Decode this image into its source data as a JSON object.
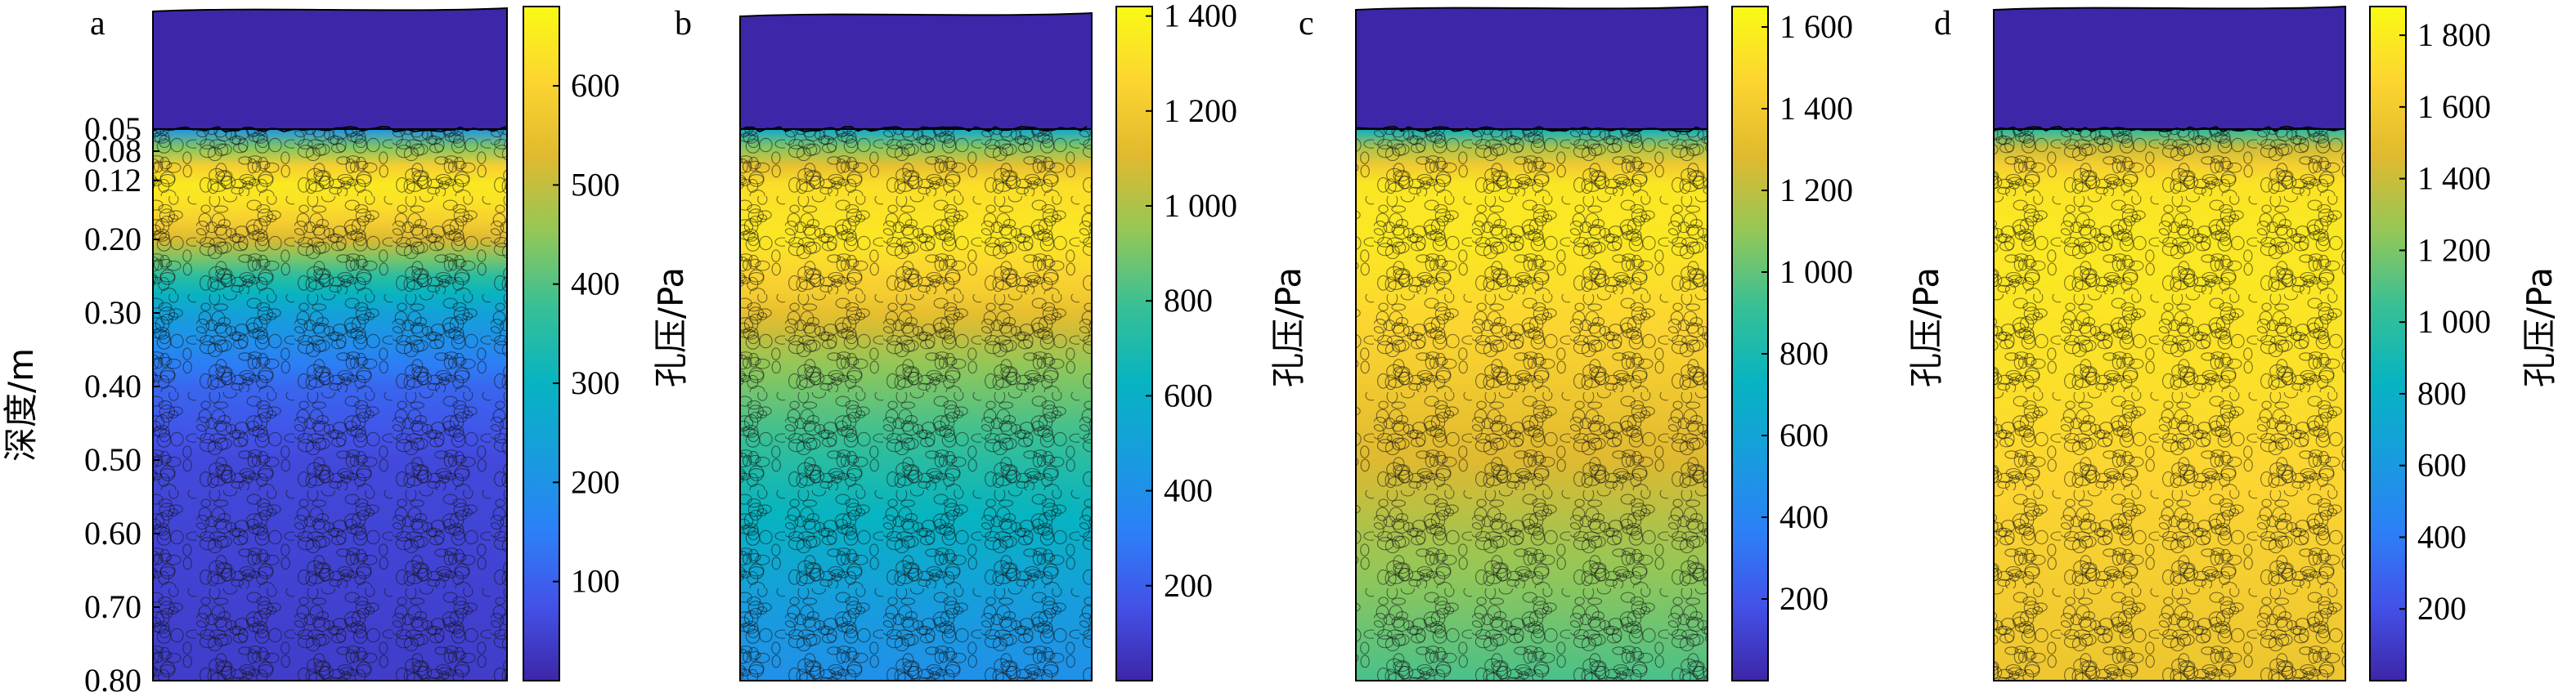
{
  "chart_data": [
    {
      "type": "heatmap",
      "panel_label": "a",
      "ylabel": "深度/m",
      "yticks": [
        "0.05",
        "0.08",
        "0.12",
        "0.20",
        "0.30",
        "0.40",
        "0.50",
        "0.60",
        "0.70",
        "0.80"
      ],
      "colorbar": {
        "label": "孔压/Pa",
        "range": [
          0,
          680
        ],
        "ticks": [
          100,
          200,
          300,
          400,
          500,
          600
        ],
        "tick_labels": [
          "100",
          "200",
          "300",
          "400",
          "500",
          "600"
        ]
      },
      "profile": [
        {
          "depth": 0.05,
          "value": 200
        },
        {
          "depth": 0.065,
          "value": 360
        },
        {
          "depth": 0.08,
          "value": 480
        },
        {
          "depth": 0.11,
          "value": 640
        },
        {
          "depth": 0.14,
          "value": 650
        },
        {
          "depth": 0.19,
          "value": 560
        },
        {
          "depth": 0.24,
          "value": 380
        },
        {
          "depth": 0.3,
          "value": 240
        },
        {
          "depth": 0.4,
          "value": 110
        },
        {
          "depth": 0.5,
          "value": 60
        },
        {
          "depth": 0.8,
          "value": 40
        }
      ]
    },
    {
      "type": "heatmap",
      "panel_label": "b",
      "colorbar": {
        "label": "孔压/Pa",
        "range": [
          0,
          1420
        ],
        "ticks": [
          200,
          400,
          600,
          800,
          1000,
          1200,
          1400
        ],
        "tick_labels": [
          "200",
          "400",
          "600",
          "800",
          "1 000",
          "1 200",
          "1 400"
        ]
      },
      "profile": [
        {
          "depth": 0.05,
          "value": 550
        },
        {
          "depth": 0.08,
          "value": 1000
        },
        {
          "depth": 0.12,
          "value": 1300
        },
        {
          "depth": 0.2,
          "value": 1340
        },
        {
          "depth": 0.28,
          "value": 1200
        },
        {
          "depth": 0.36,
          "value": 960
        },
        {
          "depth": 0.45,
          "value": 820
        },
        {
          "depth": 0.55,
          "value": 660
        },
        {
          "depth": 0.7,
          "value": 470
        },
        {
          "depth": 0.8,
          "value": 400
        }
      ]
    },
    {
      "type": "heatmap",
      "panel_label": "c",
      "colorbar": {
        "label": "孔压/Pa",
        "range": [
          0,
          1650
        ],
        "ticks": [
          200,
          400,
          600,
          800,
          1000,
          1200,
          1400,
          1600
        ],
        "tick_labels": [
          "200",
          "400",
          "600",
          "800",
          "1 000",
          "1 200",
          "1 400",
          "1 600"
        ]
      },
      "profile": [
        {
          "depth": 0.05,
          "value": 700
        },
        {
          "depth": 0.08,
          "value": 1250
        },
        {
          "depth": 0.12,
          "value": 1550
        },
        {
          "depth": 0.2,
          "value": 1560
        },
        {
          "depth": 0.3,
          "value": 1480
        },
        {
          "depth": 0.4,
          "value": 1390
        },
        {
          "depth": 0.5,
          "value": 1280
        },
        {
          "depth": 0.6,
          "value": 1150
        },
        {
          "depth": 0.7,
          "value": 1050
        },
        {
          "depth": 0.8,
          "value": 950
        }
      ]
    },
    {
      "type": "heatmap",
      "panel_label": "d",
      "colorbar": {
        "label": "孔压/Pa",
        "range": [
          0,
          1880
        ],
        "ticks": [
          200,
          400,
          600,
          800,
          1000,
          1200,
          1400,
          1600,
          1800
        ],
        "tick_labels": [
          "200",
          "400",
          "600",
          "800",
          "1 000",
          "1 200",
          "1 400",
          "1 600",
          "1 800"
        ]
      },
      "profile": [
        {
          "depth": 0.05,
          "value": 950
        },
        {
          "depth": 0.08,
          "value": 1500
        },
        {
          "depth": 0.12,
          "value": 1750
        },
        {
          "depth": 0.2,
          "value": 1780
        },
        {
          "depth": 0.3,
          "value": 1760
        },
        {
          "depth": 0.4,
          "value": 1730
        },
        {
          "depth": 0.5,
          "value": 1680
        },
        {
          "depth": 0.6,
          "value": 1640
        },
        {
          "depth": 0.7,
          "value": 1600
        },
        {
          "depth": 0.8,
          "value": 1560
        }
      ]
    }
  ]
}
